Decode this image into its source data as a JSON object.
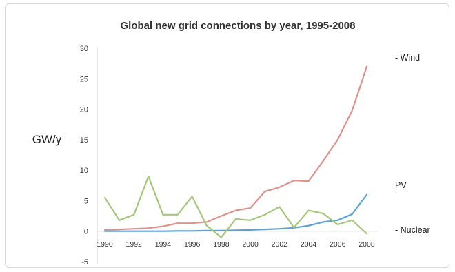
{
  "chart_data": {
    "type": "line",
    "title": "Global new grid connections by year, 1995-2008",
    "ylabel": "GW/y",
    "xlabel": "",
    "ylim": [
      -5,
      30
    ],
    "yticks": [
      -5,
      0,
      5,
      10,
      15,
      20,
      25,
      30
    ],
    "xlim": [
      1990,
      2008
    ],
    "xticks": [
      1990,
      1992,
      1994,
      1996,
      1998,
      2000,
      2002,
      2004,
      2006,
      2008
    ],
    "grid": false,
    "x": [
      1990,
      1991,
      1992,
      1993,
      1994,
      1995,
      1996,
      1997,
      1998,
      1999,
      2000,
      2001,
      2002,
      2003,
      2004,
      2005,
      2006,
      2007,
      2008
    ],
    "series": [
      {
        "name": "- Wind",
        "color": "#e0928a",
        "values": [
          0.2,
          0.3,
          0.4,
          0.5,
          0.8,
          1.3,
          1.3,
          1.5,
          2.5,
          3.4,
          3.8,
          6.5,
          7.2,
          8.3,
          8.2,
          11.5,
          15.0,
          19.8,
          27.0
        ]
      },
      {
        "name": "PV",
        "color": "#5aa2d6",
        "values": [
          0.0,
          0.0,
          0.0,
          0.0,
          0.0,
          0.05,
          0.05,
          0.1,
          0.1,
          0.15,
          0.2,
          0.3,
          0.4,
          0.55,
          0.9,
          1.5,
          1.8,
          2.8,
          6.0
        ]
      },
      {
        "name": "- Nuclear",
        "color": "#a5c77a",
        "values": [
          5.5,
          1.8,
          2.7,
          9.0,
          2.7,
          2.7,
          5.7,
          0.9,
          -1.0,
          2.0,
          1.8,
          2.7,
          4.0,
          0.6,
          3.4,
          2.9,
          1.1,
          1.8,
          -0.4
        ]
      }
    ]
  }
}
